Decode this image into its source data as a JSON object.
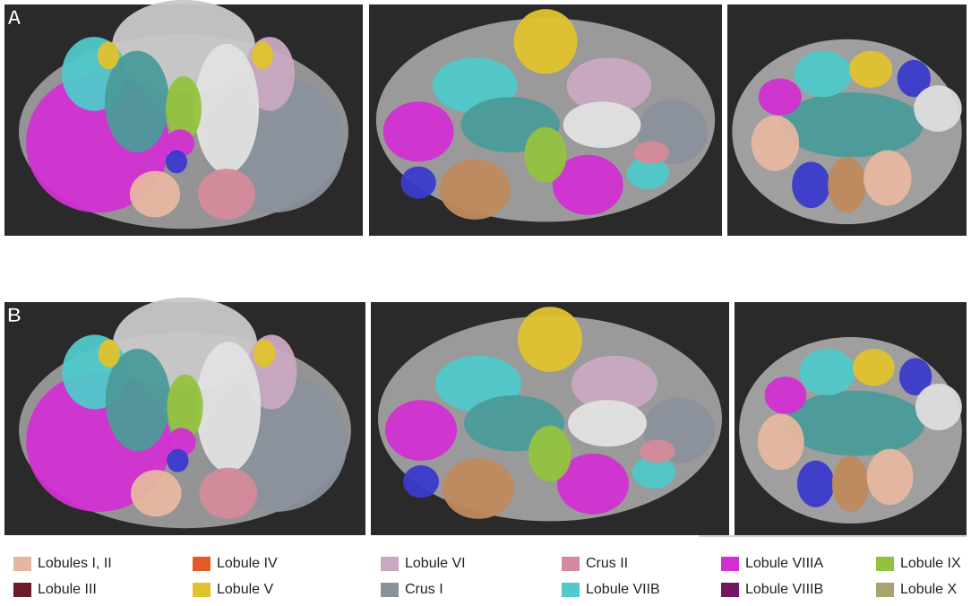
{
  "panels": [
    {
      "label": "A"
    },
    {
      "label": "B"
    }
  ],
  "legend": [
    {
      "label": "Lobules I, II",
      "color": "#e6b7a0"
    },
    {
      "label": "Lobule III",
      "color": "#6a1c28"
    },
    {
      "label": "Lobule IV",
      "color": "#e25a26"
    },
    {
      "label": "Lobule V",
      "color": "#e0c22e"
    },
    {
      "label": "Lobule VI",
      "color": "#c9a9c2"
    },
    {
      "label": "Crus I",
      "color": "#8b919b"
    },
    {
      "label": "Crus II",
      "color": "#d48a9a"
    },
    {
      "label": "Lobule VIIB",
      "color": "#4fc9c9"
    },
    {
      "label": "Lobule VIIIA",
      "color": "#d22fd2"
    },
    {
      "label": "Lobule VIIIB",
      "color": "#721862"
    },
    {
      "label": "Lobule IX",
      "color": "#93c23f"
    },
    {
      "label": "Lobule X",
      "color": "#aaa26f"
    }
  ]
}
